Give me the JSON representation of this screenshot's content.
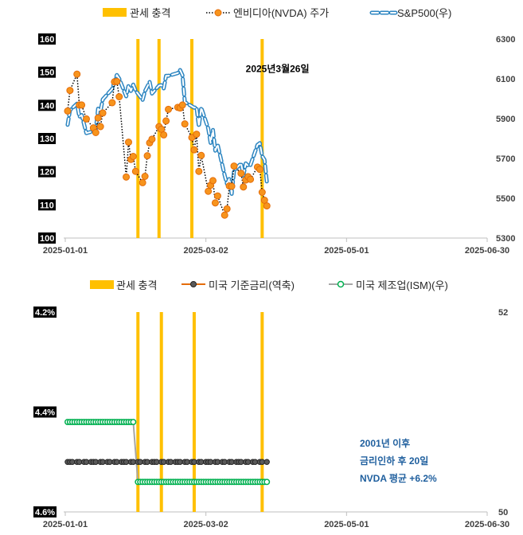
{
  "colors": {
    "tariff": "#ffc000",
    "nvda_fill": "#f7941d",
    "nvda_line": "#000000",
    "sp500": "#2e86c1",
    "rate": "#595959",
    "ism": "#00b050",
    "axis": "#bfbfbf",
    "note": "#1f5f9e"
  },
  "chart_data": [
    {
      "type": "line",
      "legend": [
        {
          "label": "관세 충격",
          "icon": "bar-swatch"
        },
        {
          "label": "엔비디아(NVDA) 주가",
          "icon": "dotted-line-circle"
        },
        {
          "label": "S&P500(우)",
          "icon": "dashed-outline-line"
        }
      ],
      "x_ticks": [
        "2025-01-01",
        "2025-03-02",
        "2025-05-01",
        "2025-06-30"
      ],
      "x_range": [
        "2025-01-01",
        "2025-06-30"
      ],
      "y_left": {
        "ticks": [
          "160",
          "150",
          "140",
          "130",
          "120",
          "110",
          "100"
        ],
        "range": [
          100,
          160
        ]
      },
      "y_right": {
        "ticks": [
          "6300",
          "6100",
          "5900",
          "5700",
          "5500",
          "5300"
        ],
        "range": [
          5300,
          6300
        ]
      },
      "tariff_shock_dates": [
        "2025-02-01",
        "2025-02-10",
        "2025-02-24",
        "2025-03-26"
      ],
      "annotation": {
        "text": "2025년3월26일",
        "date": "2025-03-20",
        "value": 151
      },
      "series": [
        {
          "name": "엔비디아(NVDA) 주가",
          "axis": "left",
          "x": [
            "2025-01-02",
            "2025-01-03",
            "2025-01-06",
            "2025-01-07",
            "2025-01-08",
            "2025-01-10",
            "2025-01-13",
            "2025-01-14",
            "2025-01-15",
            "2025-01-16",
            "2025-01-17",
            "2025-01-21",
            "2025-01-22",
            "2025-01-23",
            "2025-01-24",
            "2025-01-27",
            "2025-01-28",
            "2025-01-29",
            "2025-01-30",
            "2025-01-31",
            "2025-02-03",
            "2025-02-04",
            "2025-02-05",
            "2025-02-06",
            "2025-02-07",
            "2025-02-10",
            "2025-02-11",
            "2025-02-12",
            "2025-02-13",
            "2025-02-14",
            "2025-02-18",
            "2025-02-19",
            "2025-02-20",
            "2025-02-21",
            "2025-02-24",
            "2025-02-25",
            "2025-02-26",
            "2025-02-27",
            "2025-02-28",
            "2025-03-03",
            "2025-03-04",
            "2025-03-05",
            "2025-03-06",
            "2025-03-07",
            "2025-03-10",
            "2025-03-11",
            "2025-03-12",
            "2025-03-13",
            "2025-03-14",
            "2025-03-17",
            "2025-03-18",
            "2025-03-19",
            "2025-03-20",
            "2025-03-21",
            "2025-03-24",
            "2025-03-25",
            "2025-03-26",
            "2025-03-27",
            "2025-03-28"
          ],
          "values": [
            138.3,
            144.5,
            149.4,
            140.1,
            140.1,
            135.9,
            133.2,
            131.8,
            136.2,
            133.6,
            137.7,
            140.8,
            147.1,
            147.2,
            142.6,
            118.4,
            128.9,
            123.7,
            124.6,
            120.1,
            116.7,
            118.6,
            124.8,
            128.7,
            129.8,
            133.6,
            132.8,
            131.1,
            135.3,
            138.8,
            139.4,
            139.2,
            140.1,
            134.4,
            130.3,
            126.6,
            131.3,
            120.1,
            124.9,
            114.1,
            115.9,
            117.3,
            110.6,
            112.7,
            106.9,
            108.8,
            115.7,
            115.6,
            121.7,
            119.5,
            115.4,
            117.5,
            118.5,
            117.7,
            121.4,
            120.7,
            113.8,
            111.4,
            109.7
          ]
        },
        {
          "name": "S&P500(우)",
          "axis": "right",
          "x": [
            "2025-01-02",
            "2025-01-03",
            "2025-01-06",
            "2025-01-07",
            "2025-01-08",
            "2025-01-10",
            "2025-01-13",
            "2025-01-14",
            "2025-01-15",
            "2025-01-16",
            "2025-01-17",
            "2025-01-21",
            "2025-01-22",
            "2025-01-23",
            "2025-01-24",
            "2025-01-27",
            "2025-01-28",
            "2025-01-29",
            "2025-01-30",
            "2025-01-31",
            "2025-02-03",
            "2025-02-04",
            "2025-02-05",
            "2025-02-06",
            "2025-02-07",
            "2025-02-10",
            "2025-02-11",
            "2025-02-12",
            "2025-02-13",
            "2025-02-14",
            "2025-02-18",
            "2025-02-19",
            "2025-02-20",
            "2025-02-21",
            "2025-02-24",
            "2025-02-25",
            "2025-02-26",
            "2025-02-27",
            "2025-02-28",
            "2025-03-03",
            "2025-03-04",
            "2025-03-05",
            "2025-03-06",
            "2025-03-07",
            "2025-03-10",
            "2025-03-11",
            "2025-03-12",
            "2025-03-13",
            "2025-03-14",
            "2025-03-17",
            "2025-03-18",
            "2025-03-19",
            "2025-03-20",
            "2025-03-21",
            "2025-03-24",
            "2025-03-25",
            "2025-03-26",
            "2025-03-27",
            "2025-03-28"
          ],
          "values": [
            5869,
            5942,
            5975,
            5909,
            5918,
            5827,
            5837,
            5843,
            5950,
            5937,
            5997,
            6049,
            6086,
            6119,
            6101,
            6012,
            6067,
            6039,
            6071,
            6041,
            5994,
            6038,
            6061,
            6084,
            6026,
            6066,
            6068,
            6052,
            6115,
            6115,
            6129,
            6144,
            6118,
            5983,
            5962,
            5955,
            5956,
            5861,
            5955,
            5850,
            5778,
            5843,
            5739,
            5770,
            5615,
            5572,
            5599,
            5522,
            5639,
            5675,
            5615,
            5675,
            5663,
            5667,
            5768,
            5777,
            5712,
            5693,
            5581
          ]
        }
      ]
    },
    {
      "type": "line",
      "legend": [
        {
          "label": "관세 충격",
          "icon": "bar-swatch"
        },
        {
          "label": "미국 기준금리(역축)",
          "icon": "line-circle"
        },
        {
          "label": "미국 제조업(ISM)(우)",
          "icon": "line-circle"
        }
      ],
      "x_ticks": [
        "2025-01-01",
        "2025-03-02",
        "2025-05-01",
        "2025-06-30"
      ],
      "x_range": [
        "2025-01-01",
        "2025-06-30"
      ],
      "y_left": {
        "ticks": [
          "4.2%",
          "4.4%",
          "4.6%"
        ],
        "range": [
          4.2,
          4.6
        ],
        "inverted": true
      },
      "y_right": {
        "ticks": [
          "52",
          "50"
        ],
        "range": [
          50,
          52
        ]
      },
      "tariff_shock_dates": [
        "2025-02-01",
        "2025-02-11",
        "2025-02-25",
        "2025-03-26"
      ],
      "series": [
        {
          "name": "미국 기준금리(역축)",
          "axis": "left",
          "x_start": "2025-01-02",
          "x_end": "2025-03-28",
          "points": 60,
          "value": 4.5
        },
        {
          "name": "미국 제조업(ISM)(우)",
          "axis": "right",
          "segments": [
            {
              "x_start": "2025-01-02",
              "x_end": "2025-01-30",
              "value": 50.9
            },
            {
              "x_start": "2025-02-01",
              "x_end": "2025-03-28",
              "value": 50.3
            }
          ],
          "points_per_day": 1
        }
      ],
      "note": [
        "2001년 이후",
        "금리인하 후 20일",
        "NVDA 평균 +6.2%"
      ]
    }
  ]
}
